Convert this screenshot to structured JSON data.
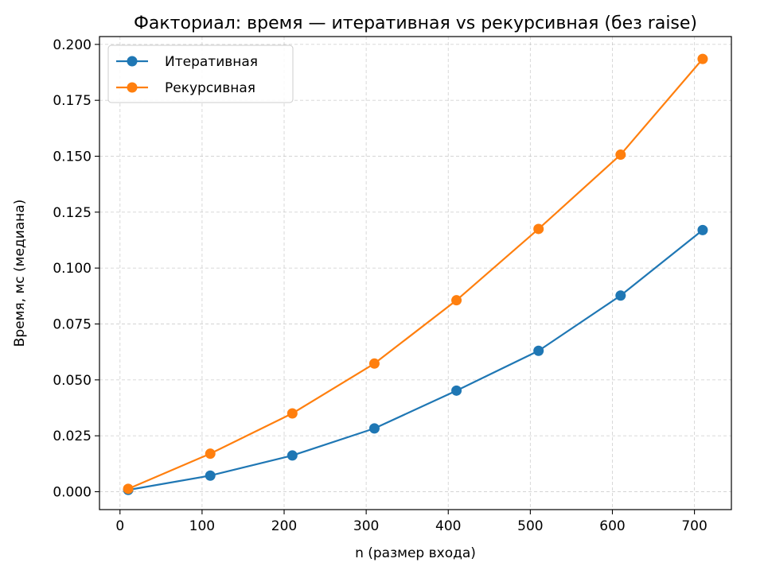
{
  "chart_data": {
    "type": "line",
    "title": "Факториал: время — итеративная vs рекурсивная (без raise)",
    "xlabel": "n (размер входа)",
    "ylabel": "Время, мс (медиана)",
    "x": [
      10,
      110,
      210,
      310,
      410,
      510,
      610,
      710
    ],
    "xlim": [
      -25,
      745
    ],
    "ylim": [
      -0.008,
      0.2035
    ],
    "xticks": [
      0,
      100,
      200,
      300,
      400,
      500,
      600,
      700
    ],
    "xtick_labels": [
      "0",
      "100",
      "200",
      "300",
      "400",
      "500",
      "600",
      "700"
    ],
    "yticks": [
      0.0,
      0.025,
      0.05,
      0.075,
      0.1,
      0.125,
      0.15,
      0.175,
      0.2
    ],
    "ytick_labels": [
      "0.000",
      "0.025",
      "0.050",
      "0.075",
      "0.100",
      "0.125",
      "0.150",
      "0.175",
      "0.200"
    ],
    "grid": true,
    "legend_position": "top-left",
    "series": [
      {
        "name": "Итеративная",
        "color": "#1f77b4",
        "values": [
          0.0008,
          0.0072,
          0.0162,
          0.0283,
          0.0452,
          0.063,
          0.0877,
          0.117
        ]
      },
      {
        "name": "Рекурсивная",
        "color": "#ff7f0e",
        "values": [
          0.0013,
          0.017,
          0.035,
          0.0573,
          0.0856,
          0.1175,
          0.1507,
          0.1935
        ]
      }
    ]
  }
}
